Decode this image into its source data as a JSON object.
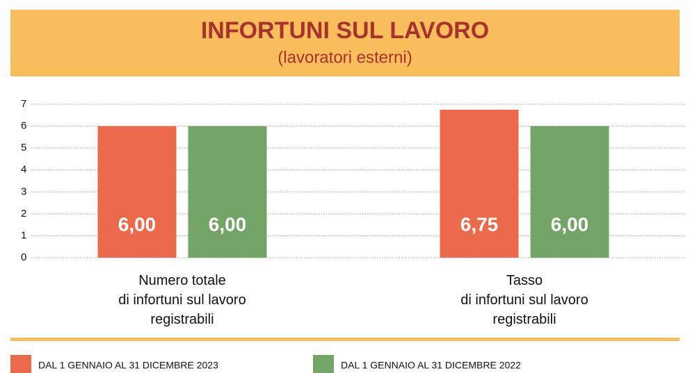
{
  "chart_data": {
    "type": "bar",
    "title": "INFORTUNI SUL LAVORO",
    "subtitle": "(lavoratori esterni)",
    "categories": [
      "Numero totale\ndi infortuni sul lavoro\nregistrabili",
      "Tasso\ndi infortuni sul lavoro\nregistrabili"
    ],
    "series": [
      {
        "name": "DAL 1 GENNAIO AL 31 DICEMBRE 2023",
        "color": "#ec6a4c",
        "values": [
          6,
          6.75
        ],
        "value_labels": [
          "6,00",
          "6,75"
        ]
      },
      {
        "name": "DAL 1 GENNAIO AL 31 DICEMBRE 2022",
        "color": "#72a566",
        "values": [
          6,
          6
        ],
        "value_labels": [
          "6,00",
          "6,00"
        ]
      }
    ],
    "ylim": [
      0,
      7
    ],
    "yticks": [
      0,
      1,
      2,
      3,
      4,
      5,
      6,
      7
    ],
    "grid": true
  }
}
